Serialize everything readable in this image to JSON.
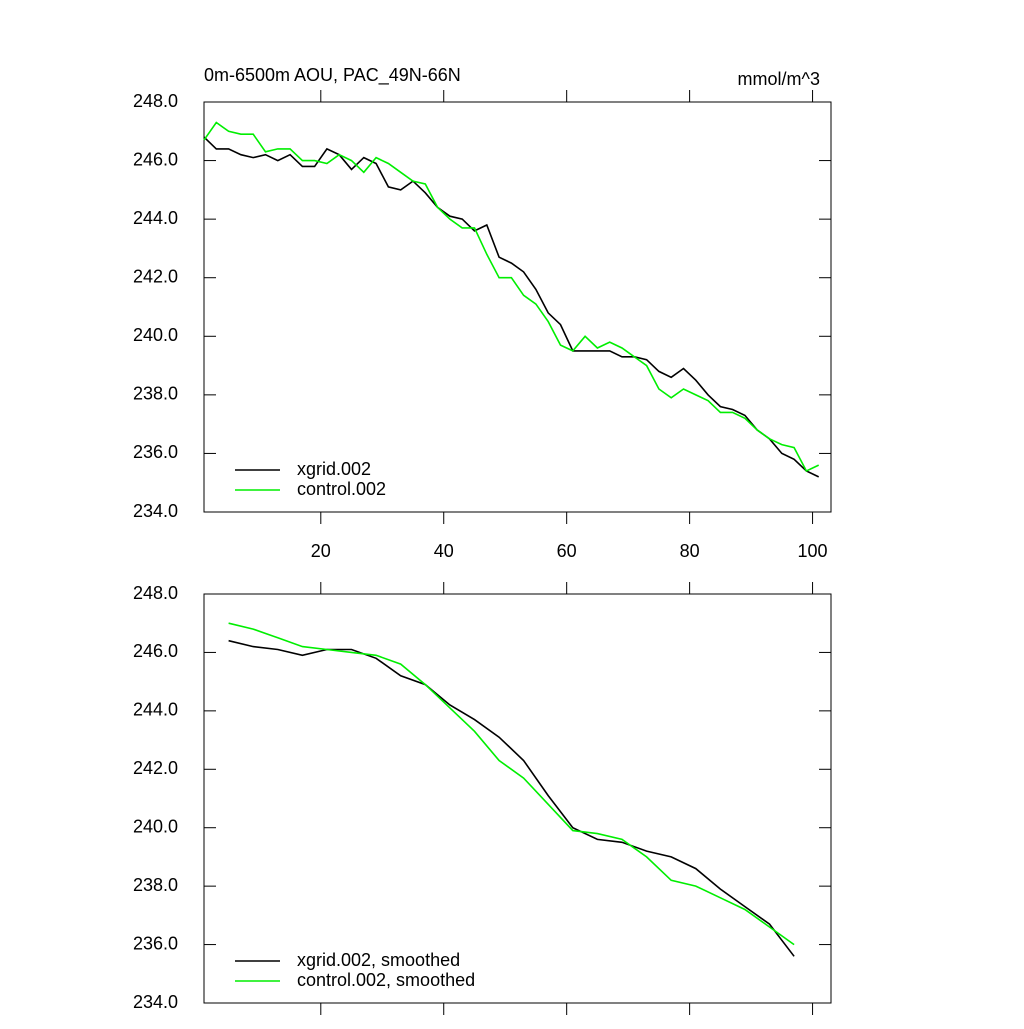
{
  "chart_data": [
    {
      "type": "line",
      "title": "0m-6500m AOU, PAC_49N-66N",
      "units": "mmol/m^3",
      "x": [
        1,
        3,
        5,
        7,
        9,
        11,
        13,
        15,
        17,
        19,
        21,
        23,
        25,
        27,
        29,
        31,
        33,
        35,
        37,
        39,
        41,
        43,
        45,
        47,
        49,
        51,
        53,
        55,
        57,
        59,
        61,
        63,
        65,
        67,
        69,
        71,
        73,
        75,
        77,
        79,
        81,
        83,
        85,
        87,
        89,
        91,
        93,
        95,
        97,
        99,
        101
      ],
      "series": [
        {
          "name": "xgrid.002",
          "color": "#000000",
          "values": [
            246.8,
            246.4,
            246.4,
            246.2,
            246.1,
            246.2,
            246.0,
            246.2,
            245.8,
            245.8,
            246.4,
            246.2,
            245.7,
            246.1,
            245.9,
            245.1,
            245.0,
            245.3,
            244.9,
            244.4,
            244.1,
            244.0,
            243.6,
            243.8,
            242.7,
            242.5,
            242.2,
            241.6,
            240.8,
            240.4,
            239.5,
            239.5,
            239.5,
            239.5,
            239.3,
            239.3,
            239.2,
            238.8,
            238.6,
            238.9,
            238.5,
            238.0,
            237.6,
            237.5,
            237.3,
            236.8,
            236.5,
            236.0,
            235.8,
            235.4,
            235.2
          ]
        },
        {
          "name": "control.002",
          "color": "#00ee00",
          "values": [
            246.7,
            247.3,
            247.0,
            246.9,
            246.9,
            246.3,
            246.4,
            246.4,
            246.0,
            246.0,
            245.9,
            246.2,
            246.0,
            245.6,
            246.1,
            245.9,
            245.6,
            245.3,
            245.2,
            244.4,
            244.0,
            243.7,
            243.7,
            242.8,
            242.0,
            242.0,
            241.4,
            241.1,
            240.5,
            239.7,
            239.5,
            240.0,
            239.6,
            239.8,
            239.6,
            239.3,
            239.0,
            238.2,
            237.9,
            238.2,
            238.0,
            237.8,
            237.4,
            237.4,
            237.2,
            236.8,
            236.5,
            236.3,
            236.2,
            235.4,
            235.6
          ]
        }
      ],
      "xlim": [
        1,
        103
      ],
      "ylim": [
        234,
        248
      ],
      "xticks": [
        20,
        40,
        60,
        80,
        100
      ],
      "yticks": [
        {
          "value": 234,
          "label": "234.0"
        },
        {
          "value": 236,
          "label": "236.0"
        },
        {
          "value": 238,
          "label": "238.0"
        },
        {
          "value": 240,
          "label": "240.0"
        },
        {
          "value": 242,
          "label": "242.0"
        },
        {
          "value": 244,
          "label": "244.0"
        },
        {
          "value": 246,
          "label": "246.0"
        },
        {
          "value": 248,
          "label": "248.0"
        }
      ],
      "legend": "lower left"
    },
    {
      "type": "line",
      "x": [
        5,
        9,
        13,
        17,
        21,
        25,
        29,
        33,
        37,
        41,
        45,
        49,
        53,
        57,
        61,
        65,
        69,
        73,
        77,
        81,
        85,
        89,
        93,
        97
      ],
      "series": [
        {
          "name": "xgrid.002, smoothed",
          "color": "#000000",
          "values": [
            246.4,
            246.2,
            246.1,
            245.9,
            246.1,
            246.1,
            245.8,
            245.2,
            244.9,
            244.2,
            243.7,
            243.1,
            242.3,
            241.1,
            240.0,
            239.6,
            239.5,
            239.2,
            239.0,
            238.6,
            237.9,
            237.3,
            236.7,
            235.6
          ]
        },
        {
          "name": "control.002, smoothed",
          "color": "#00ee00",
          "values": [
            247.0,
            246.8,
            246.5,
            246.2,
            246.1,
            246.0,
            245.9,
            245.6,
            244.9,
            244.1,
            243.3,
            242.3,
            241.7,
            240.8,
            239.9,
            239.8,
            239.6,
            239.0,
            238.2,
            238.0,
            237.6,
            237.2,
            236.6,
            236.0
          ]
        }
      ],
      "xlim": [
        1,
        103
      ],
      "ylim": [
        234,
        248
      ],
      "yticks": [
        {
          "value": 234,
          "label": "234.0"
        },
        {
          "value": 236,
          "label": "236.0"
        },
        {
          "value": 238,
          "label": "238.0"
        },
        {
          "value": 240,
          "label": "240.0"
        },
        {
          "value": 242,
          "label": "242.0"
        },
        {
          "value": 244,
          "label": "244.0"
        },
        {
          "value": 246,
          "label": "246.0"
        },
        {
          "value": 248,
          "label": "248.0"
        }
      ],
      "legend": "lower left"
    }
  ]
}
